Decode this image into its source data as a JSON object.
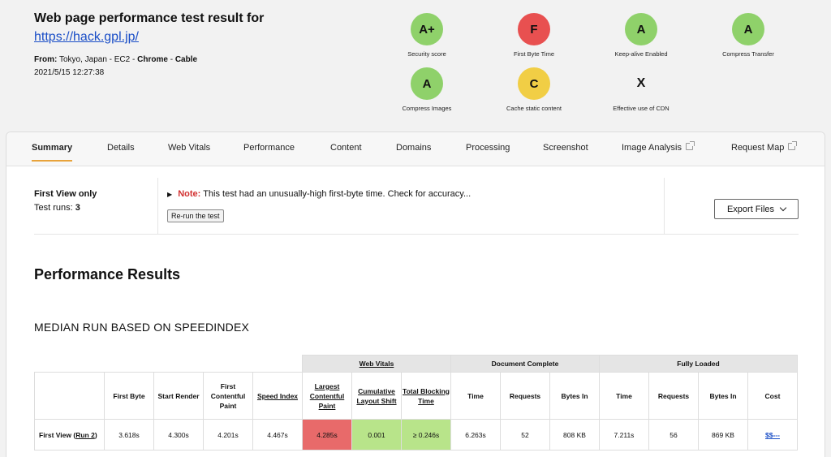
{
  "header": {
    "title": "Web page performance test result for",
    "url": "https://hack.gpl.jp/",
    "from_label": "From:",
    "location": "Tokyo, Japan - EC2 -",
    "browser": "Chrome",
    "sep": "-",
    "connection": "Cable",
    "datetime": "2021/5/15 12:27:38"
  },
  "grades": [
    {
      "grade": "A+",
      "label": "Security score",
      "color": "#8fd16a"
    },
    {
      "grade": "F",
      "label": "First Byte Time",
      "color": "#e85050"
    },
    {
      "grade": "A",
      "label": "Keep-alive Enabled",
      "color": "#8fd16a"
    },
    {
      "grade": "A",
      "label": "Compress Transfer",
      "color": "#8fd16a"
    },
    {
      "grade": "A",
      "label": "Compress Images",
      "color": "#8fd16a"
    },
    {
      "grade": "C",
      "label": "Cache static content",
      "color": "#f1ce45"
    },
    {
      "grade": "X",
      "label": "Effective use of CDN",
      "color": ""
    }
  ],
  "tabs": [
    "Summary",
    "Details",
    "Web Vitals",
    "Performance",
    "Content",
    "Domains",
    "Processing",
    "Screenshot",
    "Image Analysis",
    "Request Map"
  ],
  "info": {
    "first_view": "First View only",
    "runs_label": "Test runs:",
    "runs_value": "3",
    "note_label": "Note:",
    "note_text": "This test had an unusually-high first-byte time. Check for accuracy...",
    "rerun_label": "Re-run the test",
    "export_label": "Export Files"
  },
  "perf_title": "Performance Results",
  "median_title": "MEDIAN RUN BASED ON SPEEDINDEX",
  "table": {
    "groups": [
      "Web Vitals",
      "Document Complete",
      "Fully Loaded"
    ],
    "headers": [
      "First Byte",
      "Start Render",
      "First Contentful Paint",
      "Speed Index",
      "Largest Contentful Paint",
      "Cumulative Layout Shift",
      "Total Blocking Time",
      "Time",
      "Requests",
      "Bytes In",
      "Time",
      "Requests",
      "Bytes In",
      "Cost"
    ],
    "row_label": "First View (",
    "row_link": "Run 2",
    "row_close": ")",
    "values": [
      "3.618s",
      "4.300s",
      "4.201s",
      "4.467s",
      "4.285s",
      "0.001",
      "≥ 0.246s",
      "6.263s",
      "52",
      "808 KB",
      "7.211s",
      "56",
      "869 KB",
      "$$---"
    ],
    "colors": {
      "bad": "#e86a6a",
      "good": "#b8e48a"
    }
  }
}
